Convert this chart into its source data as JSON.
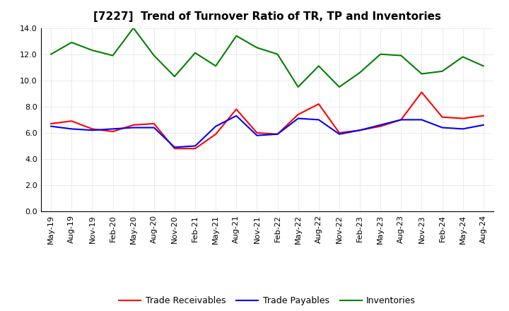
{
  "title": "[7227]  Trend of Turnover Ratio of TR, TP and Inventories",
  "x_labels": [
    "May-19",
    "Aug-19",
    "Nov-19",
    "Feb-20",
    "May-20",
    "Aug-20",
    "Nov-20",
    "Feb-21",
    "May-21",
    "Aug-21",
    "Nov-21",
    "Feb-22",
    "May-22",
    "Aug-22",
    "Nov-22",
    "Feb-23",
    "May-23",
    "Aug-23",
    "Nov-23",
    "Feb-24",
    "May-24",
    "Aug-24"
  ],
  "trade_receivables": [
    6.7,
    6.9,
    6.3,
    6.1,
    6.6,
    6.7,
    4.8,
    4.8,
    5.9,
    7.8,
    6.0,
    5.9,
    7.4,
    8.2,
    6.0,
    6.2,
    6.5,
    7.0,
    9.1,
    7.2,
    7.1,
    7.3
  ],
  "trade_payables": [
    6.5,
    6.3,
    6.2,
    6.3,
    6.4,
    6.4,
    4.9,
    5.0,
    6.5,
    7.3,
    5.8,
    5.9,
    7.1,
    7.0,
    5.9,
    6.2,
    6.6,
    7.0,
    7.0,
    6.4,
    6.3,
    6.6
  ],
  "inventories": [
    12.0,
    12.9,
    12.3,
    11.9,
    14.0,
    11.9,
    10.3,
    12.1,
    11.1,
    13.4,
    12.5,
    12.0,
    9.5,
    11.1,
    9.5,
    10.6,
    12.0,
    11.9,
    10.5,
    10.7,
    11.8,
    11.1
  ],
  "ylim": [
    0.0,
    14.0
  ],
  "yticks": [
    0.0,
    2.0,
    4.0,
    6.0,
    8.0,
    10.0,
    12.0,
    14.0
  ],
  "color_tr": "#ff0000",
  "color_tp": "#0000ff",
  "color_inv": "#008000",
  "legend_labels": [
    "Trade Receivables",
    "Trade Payables",
    "Inventories"
  ],
  "background_color": "#ffffff",
  "plot_bg_color": "#ffffff",
  "grid_color": "#999999",
  "title_fontsize": 11,
  "tick_fontsize": 8,
  "legend_fontsize": 9,
  "linewidth": 1.5
}
